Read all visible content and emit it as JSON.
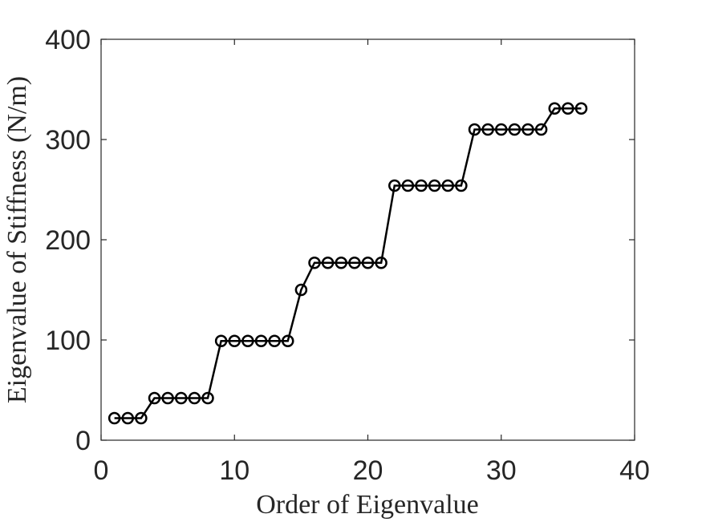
{
  "chart_data": {
    "type": "line",
    "title": "",
    "xlabel": "Order of Eigenvalue",
    "ylabel": "Eigenvalue of Stiffness (N/m)",
    "xlim": [
      0,
      40
    ],
    "ylim": [
      0,
      400
    ],
    "xticks": [
      0,
      10,
      20,
      30,
      40
    ],
    "yticks": [
      0,
      100,
      200,
      300,
      400
    ],
    "grid": false,
    "legend": "none",
    "marker": "circle",
    "line_color": "#000000",
    "series": [
      {
        "x": [
          1,
          2,
          3,
          4,
          5,
          6,
          7,
          8,
          9,
          10,
          11,
          12,
          13,
          14,
          15,
          16,
          17,
          18,
          19,
          20,
          21,
          22,
          23,
          24,
          25,
          26,
          27,
          28,
          29,
          30,
          31,
          32,
          33,
          34,
          35,
          36
        ],
        "values": [
          22,
          22,
          22,
          42,
          42,
          42,
          42,
          42,
          99,
          99,
          99,
          99,
          99,
          99,
          150,
          177,
          177,
          177,
          177,
          177,
          177,
          254,
          254,
          254,
          254,
          254,
          254,
          310,
          310,
          310,
          310,
          310,
          310,
          331,
          331,
          331
        ]
      }
    ]
  }
}
